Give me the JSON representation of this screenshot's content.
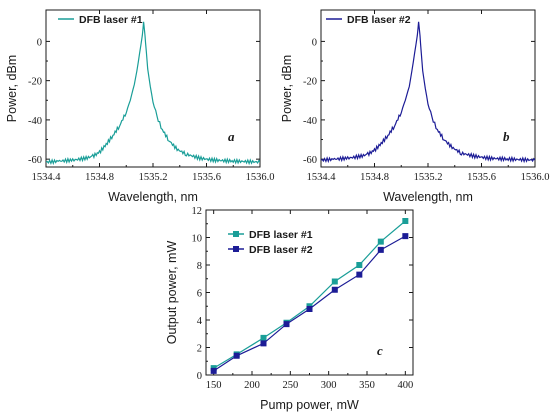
{
  "colors": {
    "laser1": "#1a9e98",
    "laser2": "#1c1c96",
    "axis": "#1a1a1a"
  },
  "chart_data": [
    {
      "id": "a",
      "type": "line",
      "panel_label": "a",
      "xlabel": "Wavelength, nm",
      "ylabel": "Power, dBm",
      "xlim": [
        1534.4,
        1536.0
      ],
      "ylim": [
        -64,
        16
      ],
      "xticks": [
        1534.4,
        1534.8,
        1535.2,
        1535.6,
        1536.0
      ],
      "xtick_labels": [
        "1534.4",
        "1534.8",
        "1535.2",
        "1535.6",
        "1536.0"
      ],
      "yticks": [
        -60,
        -40,
        -20,
        0
      ],
      "ytick_labels": [
        "-60",
        "-40",
        "-20",
        "0"
      ],
      "legend": [
        "DFB laser #1"
      ],
      "series": [
        {
          "name": "DFB laser #1",
          "x": [
            1534.4,
            1534.5,
            1534.6,
            1534.7,
            1534.75,
            1534.8,
            1534.85,
            1534.9,
            1534.95,
            1535.0,
            1535.03,
            1535.06,
            1535.08,
            1535.1,
            1535.12,
            1535.13,
            1535.14,
            1535.15,
            1535.16,
            1535.18,
            1535.2,
            1535.23,
            1535.27,
            1535.32,
            1535.38,
            1535.45,
            1535.55,
            1535.65,
            1535.8,
            1536.0
          ],
          "y": [
            -61.5,
            -61,
            -60.5,
            -59.5,
            -58.5,
            -56.5,
            -52.5,
            -48,
            -43,
            -36,
            -30,
            -22,
            -15,
            -6,
            3,
            10,
            3,
            -5,
            -14,
            -23,
            -31,
            -38.5,
            -45,
            -50.5,
            -55,
            -57.5,
            -59.5,
            -60.5,
            -61,
            -61.5
          ]
        }
      ]
    },
    {
      "id": "b",
      "type": "line",
      "panel_label": "b",
      "xlabel": "Wavelength, nm",
      "ylabel": "Power, dBm",
      "xlim": [
        1534.4,
        1536.0
      ],
      "ylim": [
        -64,
        16
      ],
      "xticks": [
        1534.4,
        1534.8,
        1535.2,
        1535.6,
        1536.0
      ],
      "xtick_labels": [
        "1534.4",
        "1534.8",
        "1535.2",
        "1535.6",
        "1536.0"
      ],
      "yticks": [
        -60,
        -40,
        -20,
        0
      ],
      "ytick_labels": [
        "-60",
        "-40",
        "-20",
        "0"
      ],
      "legend": [
        "DFB laser #2"
      ],
      "series": [
        {
          "name": "DFB laser #2",
          "x": [
            1534.4,
            1534.5,
            1534.6,
            1534.7,
            1534.75,
            1534.8,
            1534.85,
            1534.9,
            1534.95,
            1535.0,
            1535.03,
            1535.06,
            1535.08,
            1535.1,
            1535.12,
            1535.13,
            1535.14,
            1535.15,
            1535.16,
            1535.18,
            1535.2,
            1535.23,
            1535.27,
            1535.32,
            1535.38,
            1535.45,
            1535.55,
            1535.65,
            1535.8,
            1536.0
          ],
          "y": [
            -60.5,
            -60,
            -59.5,
            -58.5,
            -57.5,
            -55.5,
            -52,
            -48,
            -43,
            -36,
            -30,
            -23,
            -15,
            -6,
            3,
            10,
            3,
            -6,
            -15,
            -24,
            -32,
            -39,
            -45,
            -50,
            -54,
            -57,
            -58.5,
            -59.5,
            -60,
            -60.5
          ]
        }
      ]
    },
    {
      "id": "c",
      "type": "line",
      "panel_label": "c",
      "xlabel": "Pump power, mW",
      "ylabel": "Output power, mW",
      "xlim": [
        140,
        410
      ],
      "ylim": [
        0,
        12
      ],
      "xticks": [
        150,
        200,
        250,
        300,
        350,
        400
      ],
      "xtick_labels": [
        "150",
        "200",
        "250",
        "300",
        "350",
        "400"
      ],
      "yticks": [
        0,
        2,
        4,
        6,
        8,
        10,
        12
      ],
      "ytick_labels": [
        "0",
        "2",
        "4",
        "6",
        "8",
        "10",
        "12"
      ],
      "legend": [
        "DFB laser #1",
        "DFB laser #2"
      ],
      "series": [
        {
          "name": "DFB laser #1",
          "marker": "square",
          "x": [
            150,
            180,
            215,
            245,
            275,
            308,
            340,
            368,
            400
          ],
          "y": [
            0.5,
            1.5,
            2.7,
            3.8,
            5.0,
            6.8,
            8.0,
            9.7,
            11.2
          ]
        },
        {
          "name": "DFB laser #2",
          "marker": "square",
          "x": [
            150,
            180,
            215,
            245,
            275,
            308,
            340,
            368,
            400
          ],
          "y": [
            0.3,
            1.4,
            2.3,
            3.7,
            4.8,
            6.2,
            7.3,
            9.1,
            10.1
          ]
        }
      ]
    }
  ]
}
